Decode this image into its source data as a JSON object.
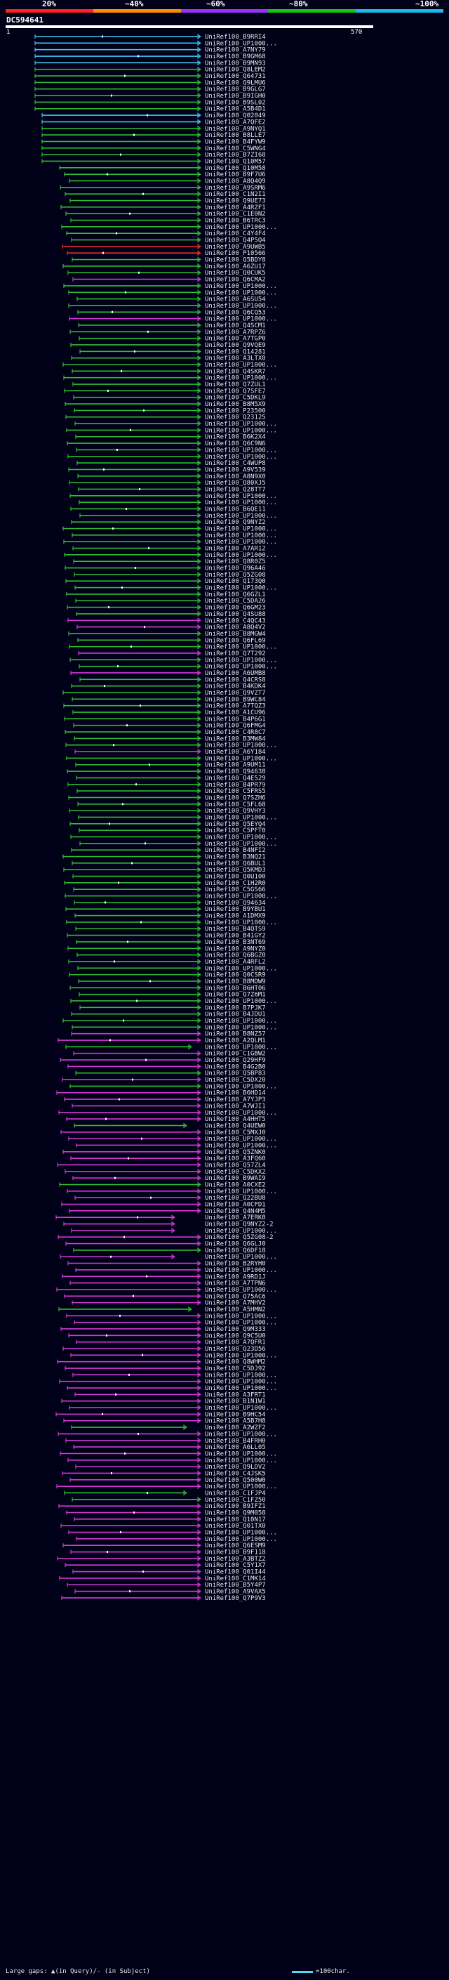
{
  "scale": {
    "labels": [
      "20%",
      "~40%",
      "~60%",
      "~80%",
      "~100%"
    ],
    "colors": [
      "#ff2020",
      "#ff8c00",
      "#9b30ff",
      "#18c018",
      "#18b8e8"
    ]
  },
  "query": {
    "title": "DC594641",
    "start": "1",
    "end": "570"
  },
  "hit_colors": {
    "cyan": "#3fc8f0",
    "green": "#2ec02e",
    "magenta": "#d838d8",
    "red": "#e83030"
  },
  "hits": [
    "UniRef100_B9RRI4",
    "UniRef100_UP1000...",
    "UniRef100_A7NY79",
    "UniRef100_B9GM68",
    "UniRef100_B9MN93",
    "UniRef100_Q8LEM2",
    "UniRef100_Q64731",
    "UniRef100_Q9LMU6",
    "UniRef100_B9GLG7",
    "UniRef100_B9IGH0",
    "UniRef100_B9SL02",
    "UniRef100_A5B4D1",
    "UniRef100_Q02049",
    "UniRef100_A7QFE2",
    "UniRef100_A9NYQ1",
    "UniRef100_B8LLE7",
    "UniRef100_B4FYW9",
    "UniRef100_C5WNG4",
    "UniRef100_B7ZI68",
    "UniRef100_Q10M57",
    "UniRef100_Q10M58",
    "UniRef100_B9F7U6",
    "UniRef100_A8Q4Q9",
    "UniRef100_A9SRM6",
    "UniRef100_C1N2I1",
    "UniRef100_Q9UE73",
    "UniRef100_A4RZF1",
    "UniRef100_C1E0N2",
    "UniRef100_B6TRC3",
    "UniRef100_UP1000...",
    "UniRef100_C4Y4F4",
    "UniRef100_Q4P5Q4",
    "UniRef100_A9UWB5",
    "UniRef100_P10566",
    "UniRef100_Q5BDY8",
    "UniRef100_A6ZU17",
    "UniRef100_Q0CUK5",
    "UniRef100_Q6CMA2",
    "UniRef100_UP1000...",
    "UniRef100_UP1000...",
    "UniRef100_A6SU54",
    "UniRef100_UP1000...",
    "UniRef100_Q6CQ53",
    "UniRef100_UP1000...",
    "UniRef100_Q4SCM1",
    "UniRef100_A7RPZ6",
    "UniRef100_A7TGP0",
    "UniRef100_Q9VQE9",
    "UniRef100_Q14281",
    "UniRef100_A3LTX0",
    "UniRef100_UP1000...",
    "UniRef100_Q4SKR7",
    "UniRef100_UP1000...",
    "UniRef100_Q7ZUL1",
    "UniRef100_Q7SFE7",
    "UniRef100_C5DKL9",
    "UniRef100_B8M5X9",
    "UniRef100_P23500",
    "UniRef100_Q23125",
    "UniRef100_UP1000...",
    "UniRef100_UP1000...",
    "UniRef100_B6K2X4",
    "UniRef100_Q6C9N6",
    "UniRef100_UP1000...",
    "UniRef100_UP1000...",
    "UniRef100_C4WUP8",
    "UniRef100_A9V539",
    "UniRef100_A8N9X0",
    "UniRef100_Q80XJ5",
    "UniRef100_Q28TT7",
    "UniRef100_UP1000...",
    "UniRef100_UP1000...",
    "UniRef100_B6QE11",
    "UniRef100_UP1000...",
    "UniRef100_Q9NYZ2",
    "UniRef100_UP1000...",
    "UniRef100_UP1000...",
    "UniRef100_UP1000...",
    "UniRef100_A7AR12",
    "UniRef100_UP1000...",
    "UniRef100_Q8R0Z5",
    "UniRef100_Q96A46",
    "UniRef100_Q5ZG08",
    "UniRef100_Q173Q0",
    "UniRef100_UP1000...",
    "UniRef100_Q6GZL1",
    "UniRef100_C5DA26",
    "UniRef100_Q6GM23",
    "UniRef100_Q4SU88",
    "UniRef100_C4QC43",
    "UniRef100_A8Q4V2",
    "UniRef100_B8MGW4",
    "UniRef100_Q6FL69",
    "UniRef100_UP1000...",
    "UniRef100_Q7T292",
    "UniRef100_UP1000...",
    "UniRef100_UP1000...",
    "UniRef100_A6UMB8",
    "UniRef100_Q4CRS8",
    "UniRef100_B4KDK4",
    "UniRef100_Q9VZT7",
    "UniRef100_B9WC84",
    "UniRef100_A7TQZ3",
    "UniRef100_A1CU96",
    "UniRef100_B4P6G1",
    "UniRef100_Q6FMG4",
    "UniRef100_C4R8C7",
    "UniRef100_B3MW84",
    "UniRef100_UP1000...",
    "UniRef100_A6Y184",
    "UniRef100_UP1000...",
    "UniRef100_A9UM11",
    "UniRef100_Q94638",
    "UniRef100_Q4E529",
    "UniRef100_B4PR79",
    "UniRef100_C5FRS5",
    "UniRef100_Q7SZH6",
    "UniRef100_C5FL68",
    "UniRef100_Q9VHY3",
    "UniRef100_UP1000...",
    "UniRef100_Q5EYQ4",
    "UniRef100_C5PFT0",
    "UniRef100_UP1000...",
    "UniRef100_UP1000...",
    "UniRef100_B4NFI2",
    "UniRef100_B3NQ21",
    "UniRef100_Q6BUL1",
    "UniRef100_Q5KMD3",
    "UniRef100_Q0U100",
    "UniRef100_C1H2R0",
    "UniRef100_C5GS66",
    "UniRef100_UP1000...",
    "UniRef100_Q94634",
    "UniRef100_B9YBU1",
    "UniRef100_A1DMX9",
    "UniRef100_UP1000...",
    "UniRef100_B4QTS9",
    "UniRef100_B41GY2",
    "UniRef100_B3NT69",
    "UniRef100_A9NYZ0",
    "UniRef100_Q6BGZ0",
    "UniRef100_A4RFL2",
    "UniRef100_UP1000...",
    "UniRef100_Q0CSR9",
    "UniRef100_B8MDW9",
    "UniRef100_B6HT06",
    "UniRef100_Q7Z6M1",
    "UniRef100_UP1000...",
    "UniRef100_B7PJK7",
    "UniRef100_B4JDU1",
    "UniRef100_UP1000...",
    "UniRef100_UP1000...",
    "UniRef100_B8NZ57",
    "UniRef100_A2QLM1",
    "UniRef100_UP1000...",
    "UniRef100_C1GBW2",
    "UniRef100_Q29HF9",
    "UniRef100_B4G2B0",
    "UniRef100_Q5BP83",
    "UniRef100_C5DX20",
    "UniRef100_UP1000...",
    "UniRef100_B6HD14",
    "UniRef100_A7YJP3",
    "UniRef100_A7WJI1",
    "UniRef100_UP1000...",
    "UniRef100_A4HHT5",
    "UniRef100_Q4UEW0",
    "UniRef100_C5MXJ0",
    "UniRef100_UP1000...",
    "UniRef100_UP1000...",
    "UniRef100_Q5ZNK0",
    "UniRef100_A3FQ60",
    "UniRef100_Q57ZL4",
    "UniRef100_C5DKX2",
    "UniRef100_B9WAI9",
    "UniRef100_A0CXE2",
    "UniRef100_UP1000...",
    "UniRef100_Q22BU8",
    "UniRef100_A0CFD1",
    "UniRef100_Q4N4M5",
    "UniRef100_A7ERK0",
    "UniRef100_Q9NYZ2-2",
    "UniRef100_UP1000...",
    "UniRef100_Q5ZG08-2",
    "UniRef100_Q6GLJ0",
    "UniRef100_Q6DF18",
    "UniRef100_UP1000...",
    "UniRef100_B2RYH0",
    "UniRef100_UP1000...",
    "UniRef100_A9RD1J",
    "UniRef100_A7TPN6",
    "UniRef100_UP1000...",
    "UniRef100_Q75AC6",
    "UniRef100_A7MHV2",
    "UniRef100_A5HMN2",
    "UniRef100_UP1000...",
    "UniRef100_UP1000...",
    "UniRef100_Q9M333",
    "UniRef100_Q9C5U0",
    "UniRef100_A7QFR1",
    "UniRef100_Q23D56",
    "UniRef100_UP1000...",
    "UniRef100_Q8WHM2",
    "UniRef100_C5DJ92",
    "UniRef100_UP1000...",
    "UniRef100_UP1000...",
    "UniRef100_UP1000...",
    "UniRef100_A3FRT1",
    "UniRef100_B1N1W1",
    "UniRef100_UP1000...",
    "UniRef100_B9HC54",
    "UniRef100_A5B7H8",
    "UniRef100_A2WZF2",
    "UniRef100_UP1000...",
    "UniRef100_B4FRH0",
    "UniRef100_A6LL05",
    "UniRef100_UP1000...",
    "UniRef100_UP1000...",
    "UniRef100_Q9LDV2",
    "UniRef100_C4JSK5",
    "UniRef100_Q500W0",
    "UniRef100_UP1000...",
    "UniRef100_C1FJP4",
    "UniRef100_C1FZ50",
    "UniRef100_B9IFZ1",
    "UniRef100_Q9M058",
    "UniRef100_Q10N17",
    "UniRef100_Q01TX0",
    "UniRef100_UP1000...",
    "UniRef100_UP1000...",
    "UniRef100_Q6ESM9",
    "UniRef100_B9F118",
    "UniRef100_A3BTZ2",
    "UniRef100_C5Y1X7",
    "UniRef100_Q01I44",
    "UniRef100_C1MK14",
    "UniRef100_B5Y4P7",
    "UniRef100_A9VAX5",
    "UniRef100_Q7P9V3"
  ],
  "legend": {
    "gaps": "Large gaps: ▲(in Query)/- (in Subject)",
    "scale": "=100char."
  }
}
